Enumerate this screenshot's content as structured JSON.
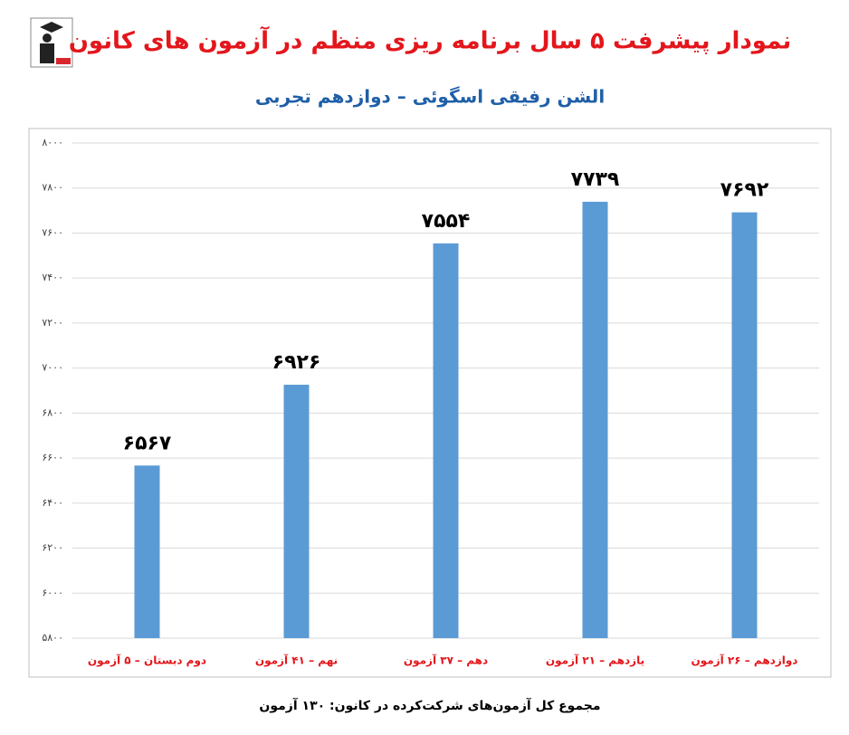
{
  "chart_data": {
    "type": "bar",
    "title": "نمودار پیشرفت ۵ سال برنامه ریزی منظم در آزمون های کانون",
    "subtitle": "الشن رفیقی اسگوئی – دوازدهم تجربی",
    "footer": "مجموع کل آزمون‌های شرکت‌کرده در کانون: ۱۳۰ آزمون",
    "categories": [
      "دوم دبستان – ۵ آزمون",
      "نهم – ۴۱ آزمون",
      "دهم – ۳۷ آزمون",
      "یازدهم – ۲۱ آزمون",
      "دوازدهم – ۲۶ آزمون"
    ],
    "values": [
      6567,
      6926,
      7554,
      7739,
      7692
    ],
    "value_labels": [
      "۶۵۶۷",
      "۶۹۲۶",
      "۷۵۵۴",
      "۷۷۳۹",
      "۷۶۹۲"
    ],
    "color": "#5b9bd5",
    "ylim": [
      5800,
      8000
    ],
    "yticks": [
      {
        "value": 5800,
        "label": "۵۸۰۰"
      },
      {
        "value": 6000,
        "label": "۶۰۰۰"
      },
      {
        "value": 6200,
        "label": "۶۲۰۰"
      },
      {
        "value": 6400,
        "label": "۶۴۰۰"
      },
      {
        "value": 6600,
        "label": "۶۶۰۰"
      },
      {
        "value": 6800,
        "label": "۶۸۰۰"
      },
      {
        "value": 7000,
        "label": "۷۰۰۰"
      },
      {
        "value": 7200,
        "label": "۷۲۰۰"
      },
      {
        "value": 7400,
        "label": "۷۴۰۰"
      },
      {
        "value": 7600,
        "label": "۷۶۰۰"
      },
      {
        "value": 7800,
        "label": "۷۸۰۰"
      },
      {
        "value": 8000,
        "label": "۸۰۰۰"
      }
    ],
    "grid": true
  }
}
